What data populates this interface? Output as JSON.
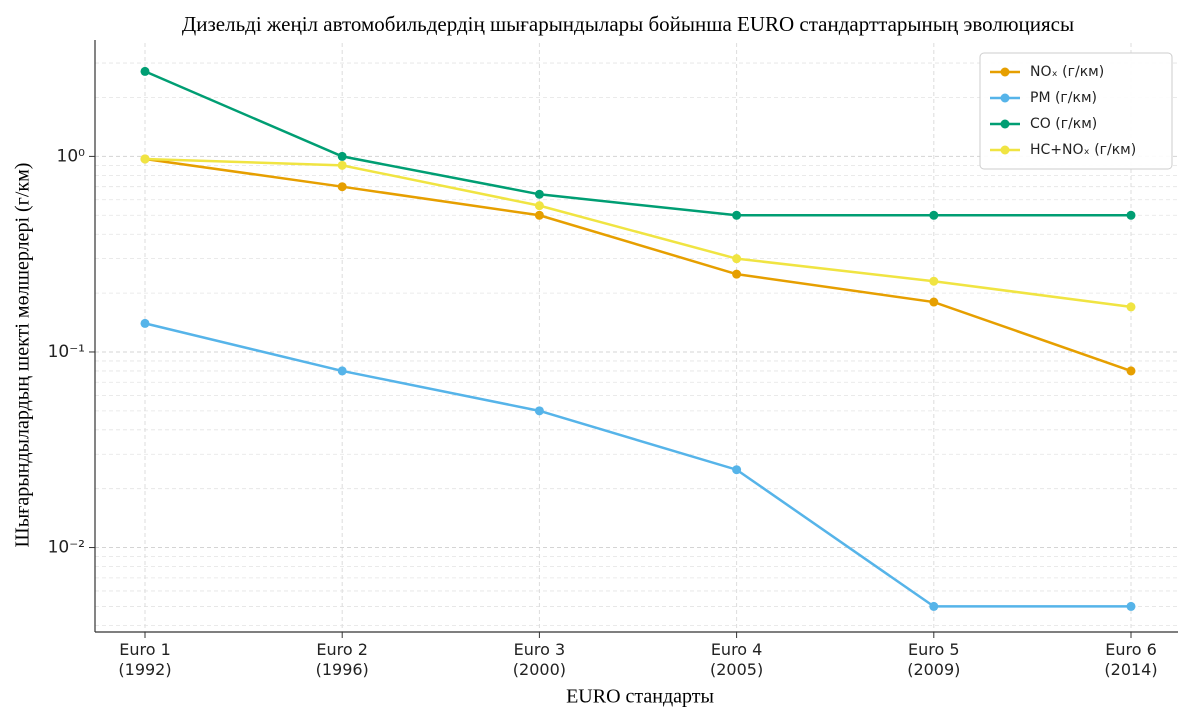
{
  "chart_data": {
    "type": "line",
    "title": "Дизельді жеңіл автомобильдердің шығарындылары бойынша EURO стандарттарының эволюциясы",
    "xlabel": "EURO стандарты",
    "ylabel": "Шығарындылардың шекті мөлшерлері (г/км)",
    "categories": [
      "Euro 1\n(1992)",
      "Euro 2\n(1996)",
      "Euro 3\n(2000)",
      "Euro 4\n(2005)",
      "Euro 5\n(2009)",
      "Euro 6\n(2014)"
    ],
    "series": [
      {
        "name": "NOₓ (г/км)",
        "color": "#e69f00",
        "values": [
          0.97,
          0.7,
          0.5,
          0.25,
          0.18,
          0.08
        ]
      },
      {
        "name": "PM (г/км)",
        "color": "#56b4e9",
        "values": [
          0.14,
          0.08,
          0.05,
          0.025,
          0.005,
          0.005
        ]
      },
      {
        "name": "CO (г/км)",
        "color": "#009e73",
        "values": [
          2.72,
          1.0,
          0.64,
          0.5,
          0.5,
          0.5
        ]
      },
      {
        "name": "HC+NOₓ (г/км)",
        "color": "#f0e442",
        "values": [
          0.97,
          0.9,
          0.56,
          0.3,
          0.23,
          0.17
        ]
      }
    ],
    "yscale": "log",
    "ylim": [
      0.0037,
      3.8
    ],
    "yticks": [
      {
        "value": 0.01,
        "label": "10⁻²"
      },
      {
        "value": 0.1,
        "label": "10⁻¹"
      },
      {
        "value": 1,
        "label": "10⁰"
      }
    ],
    "yminorticks": [
      0.004,
      0.005,
      0.006,
      0.007,
      0.008,
      0.009,
      0.02,
      0.03,
      0.04,
      0.05,
      0.06,
      0.07,
      0.08,
      0.09,
      0.2,
      0.3,
      0.4,
      0.5,
      0.6,
      0.7,
      0.8,
      0.9,
      2,
      3
    ],
    "grid": true,
    "legend": "upper right"
  }
}
